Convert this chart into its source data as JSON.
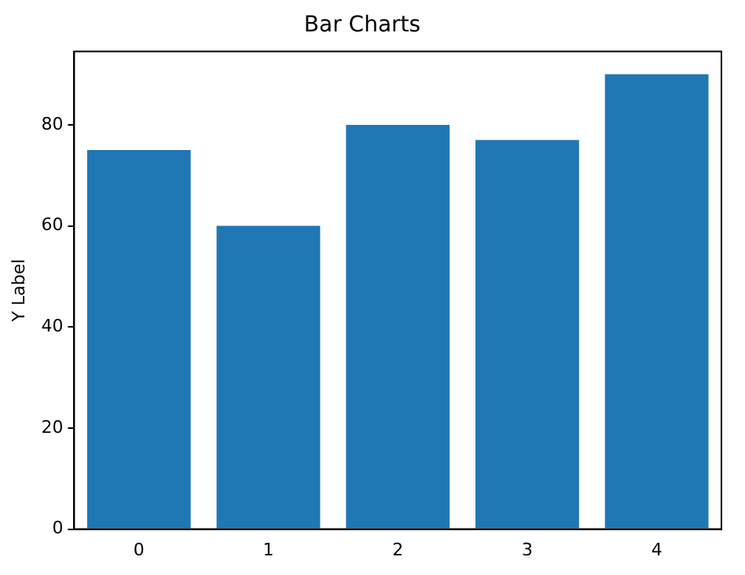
{
  "chart_data": {
    "type": "bar",
    "title": "Bar Charts",
    "ylabel": "Y Label",
    "categories": [
      "0",
      "1",
      "2",
      "3",
      "4"
    ],
    "values": [
      75,
      60,
      80,
      77,
      90
    ],
    "color": "#1f77b4",
    "ylim": [
      0,
      94.5
    ],
    "yticks": [
      0,
      20,
      40,
      60,
      80
    ],
    "grid": false,
    "legend": false
  }
}
